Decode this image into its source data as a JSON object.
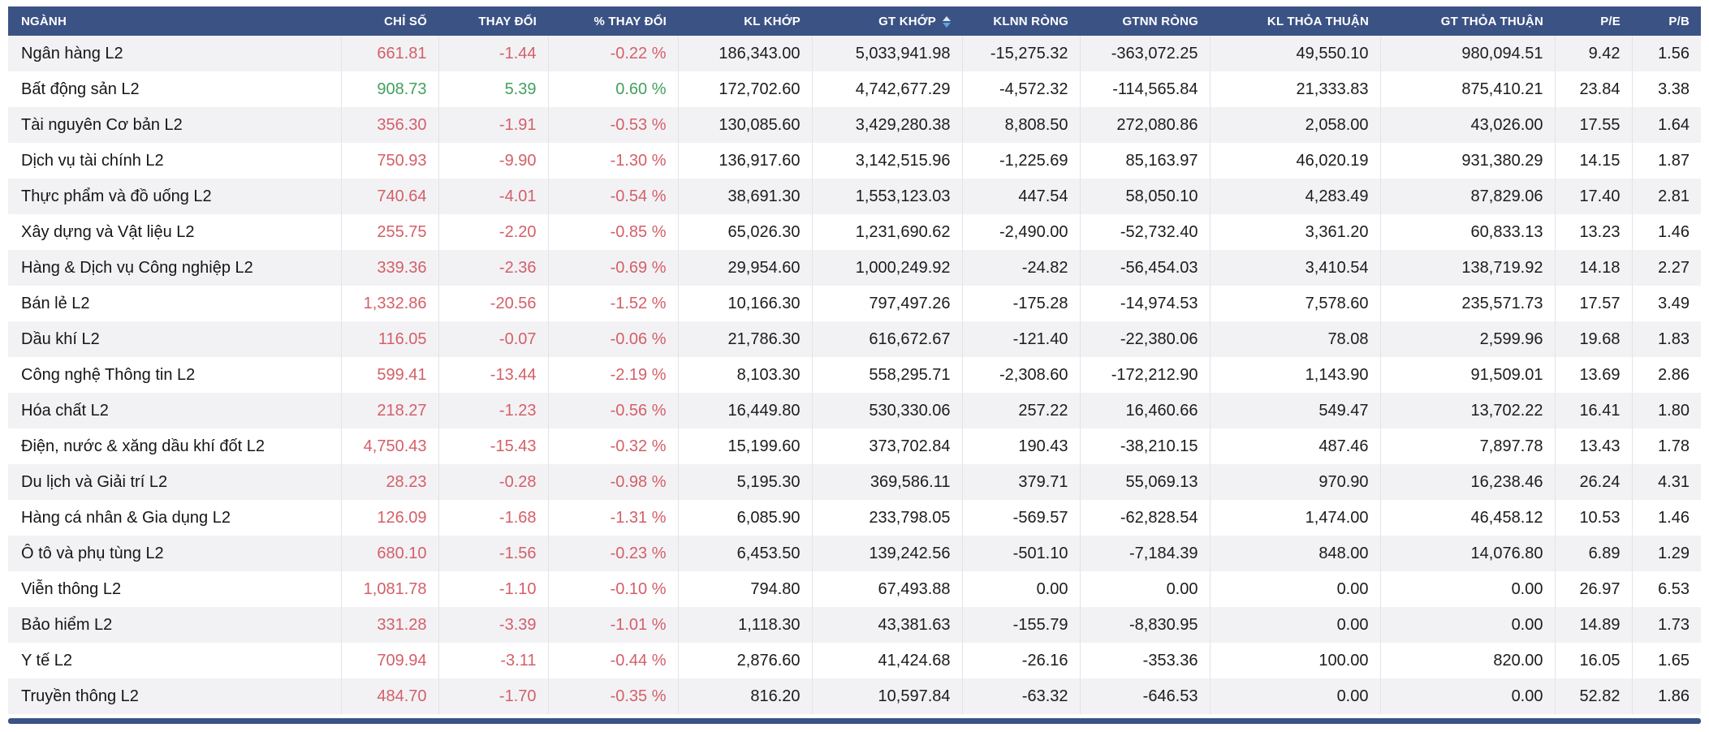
{
  "header": {
    "columns": [
      {
        "label": "NGÀNH",
        "align": "left"
      },
      {
        "label": "CHỈ SỐ",
        "align": "right"
      },
      {
        "label": "THAY ĐỔI",
        "align": "right"
      },
      {
        "label": "% THAY ĐỔI",
        "align": "right"
      },
      {
        "label": "KL KHỚP",
        "align": "right"
      },
      {
        "label": "GT KHỚP",
        "align": "right",
        "sort": "desc"
      },
      {
        "label": "KLNN RÒNG",
        "align": "right"
      },
      {
        "label": "GTNN RÒNG",
        "align": "right"
      },
      {
        "label": "KL THỎA THUẬN",
        "align": "right"
      },
      {
        "label": "GT THỎA THUẬN",
        "align": "right"
      },
      {
        "label": "P/E",
        "align": "right"
      },
      {
        "label": "P/B",
        "align": "right"
      }
    ]
  },
  "rows": [
    {
      "name": "Ngân hàng L2",
      "trend": "down",
      "values": [
        "661.81",
        "-1.44",
        "-0.22 %",
        "186,343.00",
        "5,033,941.98",
        "-15,275.32",
        "-363,072.25",
        "49,550.10",
        "980,094.51",
        "9.42",
        "1.56"
      ]
    },
    {
      "name": "Bất động sản L2",
      "trend": "up",
      "values": [
        "908.73",
        "5.39",
        "0.60 %",
        "172,702.60",
        "4,742,677.29",
        "-4,572.32",
        "-114,565.84",
        "21,333.83",
        "875,410.21",
        "23.84",
        "3.38"
      ]
    },
    {
      "name": "Tài nguyên Cơ bản L2",
      "trend": "down",
      "values": [
        "356.30",
        "-1.91",
        "-0.53 %",
        "130,085.60",
        "3,429,280.38",
        "8,808.50",
        "272,080.86",
        "2,058.00",
        "43,026.00",
        "17.55",
        "1.64"
      ]
    },
    {
      "name": "Dịch vụ tài chính L2",
      "trend": "down",
      "values": [
        "750.93",
        "-9.90",
        "-1.30 %",
        "136,917.60",
        "3,142,515.96",
        "-1,225.69",
        "85,163.97",
        "46,020.19",
        "931,380.29",
        "14.15",
        "1.87"
      ]
    },
    {
      "name": "Thực phẩm và đồ uống L2",
      "trend": "down",
      "values": [
        "740.64",
        "-4.01",
        "-0.54 %",
        "38,691.30",
        "1,553,123.03",
        "447.54",
        "58,050.10",
        "4,283.49",
        "87,829.06",
        "17.40",
        "2.81"
      ]
    },
    {
      "name": "Xây dựng và Vật liệu L2",
      "trend": "down",
      "values": [
        "255.75",
        "-2.20",
        "-0.85 %",
        "65,026.30",
        "1,231,690.62",
        "-2,490.00",
        "-52,732.40",
        "3,361.20",
        "60,833.13",
        "13.23",
        "1.46"
      ]
    },
    {
      "name": "Hàng & Dịch vụ Công nghiệp L2",
      "trend": "down",
      "values": [
        "339.36",
        "-2.36",
        "-0.69 %",
        "29,954.60",
        "1,000,249.92",
        "-24.82",
        "-56,454.03",
        "3,410.54",
        "138,719.92",
        "14.18",
        "2.27"
      ]
    },
    {
      "name": "Bán lẻ L2",
      "trend": "down",
      "values": [
        "1,332.86",
        "-20.56",
        "-1.52 %",
        "10,166.30",
        "797,497.26",
        "-175.28",
        "-14,974.53",
        "7,578.60",
        "235,571.73",
        "17.57",
        "3.49"
      ]
    },
    {
      "name": "Dầu khí L2",
      "trend": "down",
      "values": [
        "116.05",
        "-0.07",
        "-0.06 %",
        "21,786.30",
        "616,672.67",
        "-121.40",
        "-22,380.06",
        "78.08",
        "2,599.96",
        "19.68",
        "1.83"
      ]
    },
    {
      "name": "Công nghệ Thông tin L2",
      "trend": "down",
      "values": [
        "599.41",
        "-13.44",
        "-2.19 %",
        "8,103.30",
        "558,295.71",
        "-2,308.60",
        "-172,212.90",
        "1,143.90",
        "91,509.01",
        "13.69",
        "2.86"
      ]
    },
    {
      "name": "Hóa chất L2",
      "trend": "down",
      "values": [
        "218.27",
        "-1.23",
        "-0.56 %",
        "16,449.80",
        "530,330.06",
        "257.22",
        "16,460.66",
        "549.47",
        "13,702.22",
        "16.41",
        "1.80"
      ]
    },
    {
      "name": "Điện, nước & xăng dầu khí đốt L2",
      "trend": "down",
      "values": [
        "4,750.43",
        "-15.43",
        "-0.32 %",
        "15,199.60",
        "373,702.84",
        "190.43",
        "-38,210.15",
        "487.46",
        "7,897.78",
        "13.43",
        "1.78"
      ]
    },
    {
      "name": "Du lịch và Giải trí L2",
      "trend": "down",
      "values": [
        "28.23",
        "-0.28",
        "-0.98 %",
        "5,195.30",
        "369,586.11",
        "379.71",
        "55,069.13",
        "970.90",
        "16,238.46",
        "26.24",
        "4.31"
      ]
    },
    {
      "name": "Hàng cá nhân & Gia dụng L2",
      "trend": "down",
      "values": [
        "126.09",
        "-1.68",
        "-1.31 %",
        "6,085.90",
        "233,798.05",
        "-569.57",
        "-62,828.54",
        "1,474.00",
        "46,458.12",
        "10.53",
        "1.46"
      ]
    },
    {
      "name": "Ô tô và phụ tùng L2",
      "trend": "down",
      "values": [
        "680.10",
        "-1.56",
        "-0.23 %",
        "6,453.50",
        "139,242.56",
        "-501.10",
        "-7,184.39",
        "848.00",
        "14,076.80",
        "6.89",
        "1.29"
      ]
    },
    {
      "name": "Viễn thông L2",
      "trend": "down",
      "values": [
        "1,081.78",
        "-1.10",
        "-0.10 %",
        "794.80",
        "67,493.88",
        "0.00",
        "0.00",
        "0.00",
        "0.00",
        "26.97",
        "6.53"
      ]
    },
    {
      "name": "Bảo hiểm L2",
      "trend": "down",
      "values": [
        "331.28",
        "-3.39",
        "-1.01 %",
        "1,118.30",
        "43,381.63",
        "-155.79",
        "-8,830.95",
        "0.00",
        "0.00",
        "14.89",
        "1.73"
      ]
    },
    {
      "name": "Y tế L2",
      "trend": "down",
      "values": [
        "709.94",
        "-3.11",
        "-0.44 %",
        "2,876.60",
        "41,424.68",
        "-26.16",
        "-353.36",
        "100.00",
        "820.00",
        "16.05",
        "1.65"
      ]
    },
    {
      "name": "Truyền thông L2",
      "trend": "down",
      "values": [
        "484.70",
        "-1.70",
        "-0.35 %",
        "816.20",
        "10,597.84",
        "-63.32",
        "-646.53",
        "0.00",
        "0.00",
        "52.82",
        "1.86"
      ]
    }
  ],
  "colors": {
    "header_bg": "#3B5284",
    "header_fg": "#FFFFFF",
    "down": "#D45F68",
    "up": "#43A05E",
    "row_alt": "#F2F2F5",
    "divider": "#E3E3E8",
    "sort_arrow_active": "#57A7E3",
    "sort_arrow_inactive": "#DDE5F0"
  }
}
